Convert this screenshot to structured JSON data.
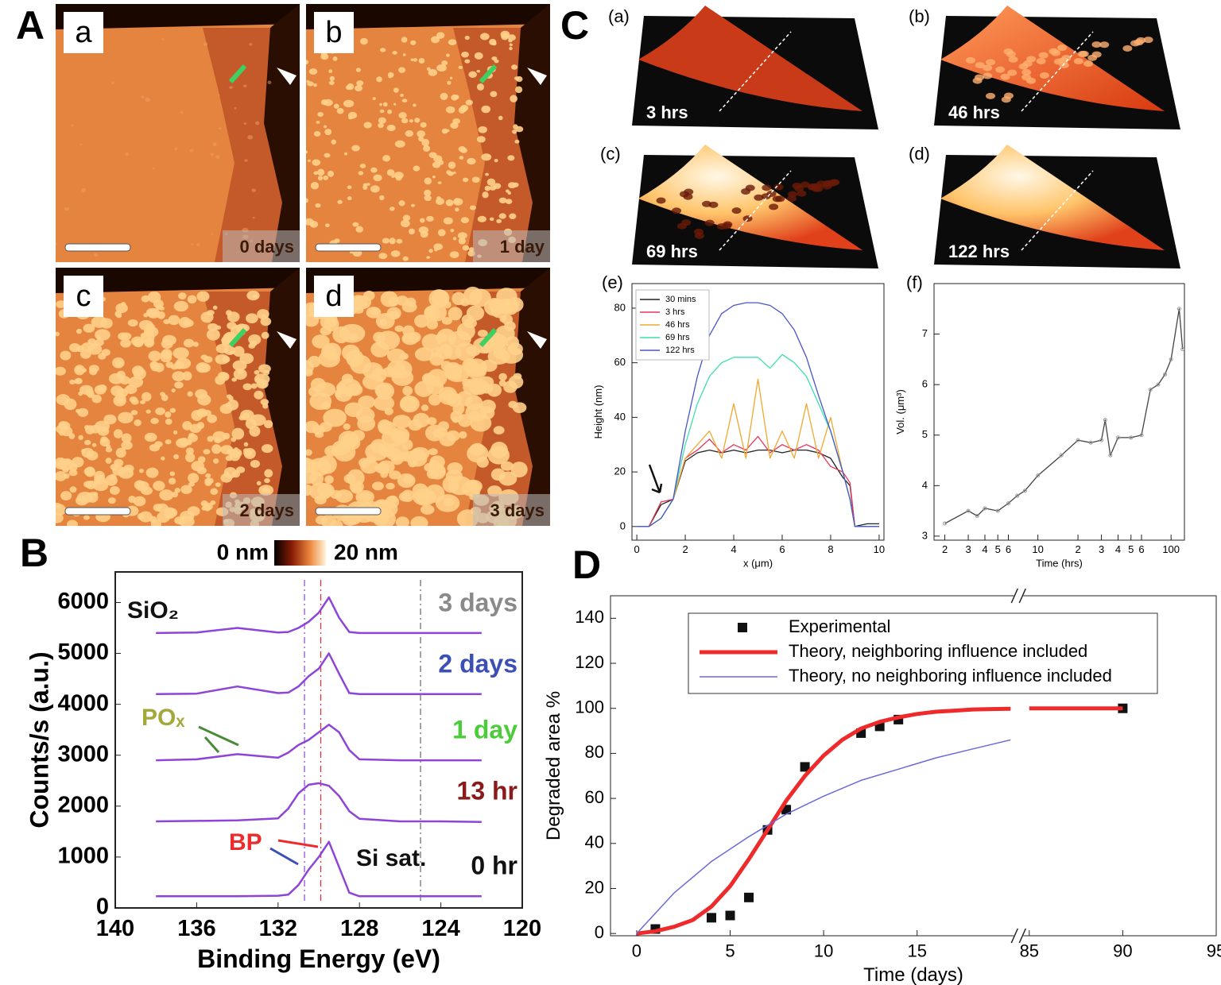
{
  "panels": {
    "A": {
      "letter": "A",
      "images": [
        {
          "tag": "a",
          "caption": "0 days"
        },
        {
          "tag": "b",
          "caption": "1 day"
        },
        {
          "tag": "c",
          "caption": "2 days"
        },
        {
          "tag": "d",
          "caption": "3 days"
        }
      ]
    },
    "C": {
      "letter": "C",
      "images": [
        {
          "tag": "(a)",
          "caption": "3 hrs"
        },
        {
          "tag": "(b)",
          "caption": "46 hrs"
        },
        {
          "tag": "(c)",
          "caption": "69 hrs"
        },
        {
          "tag": "(d)",
          "caption": "122 hrs"
        }
      ]
    },
    "colorbar": {
      "min_label": "0 nm",
      "max_label": "20 nm"
    }
  },
  "chart_data": [
    {
      "type": "line",
      "panel": "B",
      "x_label": "Binding Energy (eV)",
      "y_label": "Counts/s (a.u.)",
      "xlim": [
        140,
        120
      ],
      "xticks": [
        140,
        136,
        132,
        128,
        124,
        120
      ],
      "ylim": [
        0,
        6600
      ],
      "yticks": [
        0,
        1000,
        2000,
        3000,
        4000,
        5000,
        6000
      ],
      "vlines": [
        130.7,
        129.9,
        125
      ],
      "annotations": [
        "SiO₂",
        "POₓ",
        "BP",
        "Si sat."
      ],
      "x": [
        138,
        136,
        134,
        132,
        131.5,
        131,
        130.5,
        130,
        129.5,
        129,
        128.5,
        128,
        126,
        124,
        122
      ],
      "series": [
        {
          "name": "3 days",
          "color": "#8e44d8",
          "name_color": "#8a8a8a",
          "values": [
            5400,
            5410,
            5500,
            5410,
            5420,
            5500,
            5620,
            5800,
            6100,
            5700,
            5420,
            5400,
            5400,
            5400,
            5400
          ]
        },
        {
          "name": "2 days",
          "color": "#8e44d8",
          "name_color": "#3b4fb5",
          "values": [
            4200,
            4210,
            4350,
            4220,
            4230,
            4350,
            4550,
            4700,
            5000,
            4600,
            4220,
            4200,
            4200,
            4200,
            4200
          ]
        },
        {
          "name": "1 day",
          "color": "#8e44d8",
          "name_color": "#4ccc3a",
          "values": [
            2900,
            2920,
            3020,
            2950,
            3050,
            3200,
            3300,
            3450,
            3600,
            3450,
            3100,
            2920,
            2900,
            2900,
            2900
          ]
        },
        {
          "name": "13 hr",
          "color": "#8e44d8",
          "name_color": "#8b1a1a",
          "values": [
            1700,
            1710,
            1720,
            1760,
            1950,
            2250,
            2420,
            2450,
            2400,
            2200,
            1900,
            1750,
            1700,
            1700,
            1690
          ]
        },
        {
          "name": "0 hr",
          "color": "#8e44d8",
          "name_color": "#111111",
          "values": [
            230,
            230,
            230,
            240,
            260,
            450,
            750,
            1000,
            1300,
            800,
            300,
            230,
            230,
            230,
            230
          ]
        }
      ]
    },
    {
      "type": "line",
      "panel": "(e)",
      "x_label": "x (μm)",
      "y_label": "Height (nm)",
      "legend": "upper left",
      "xlim": [
        -0.2,
        10.2
      ],
      "xticks": [
        0,
        2,
        4,
        6,
        8,
        10
      ],
      "ylim": [
        -5,
        89
      ],
      "yticks": [
        0,
        20,
        40,
        60,
        80
      ],
      "x": [
        0,
        0.5,
        1,
        1.5,
        2,
        2.5,
        3,
        3.5,
        4,
        4.5,
        5,
        5.5,
        6,
        6.5,
        7,
        7.5,
        8,
        8.5,
        8.8,
        9,
        9.5,
        10
      ],
      "series": [
        {
          "name": "30 mins",
          "color": "#222222",
          "values": [
            0,
            0,
            8,
            10,
            24,
            27,
            28,
            27,
            28,
            27,
            28,
            28,
            27,
            28,
            28,
            27,
            25,
            18,
            15,
            0,
            1,
            1
          ]
        },
        {
          "name": "3 hrs",
          "color": "#e8365a",
          "values": [
            0,
            0,
            9,
            10,
            25,
            28,
            32,
            27,
            30,
            28,
            33,
            27,
            30,
            28,
            30,
            28,
            22,
            20,
            16,
            0,
            0,
            0
          ]
        },
        {
          "name": "46 hrs",
          "color": "#f0a830",
          "values": [
            0,
            0,
            3,
            10,
            25,
            30,
            35,
            25,
            45,
            25,
            54,
            25,
            35,
            25,
            45,
            25,
            40,
            20,
            10,
            0,
            0,
            0
          ]
        },
        {
          "name": "69 hrs",
          "color": "#3ee0b0",
          "values": [
            0,
            0,
            3,
            10,
            30,
            45,
            55,
            60,
            62,
            62,
            62,
            58,
            63,
            60,
            55,
            45,
            35,
            20,
            10,
            0,
            0,
            0
          ]
        },
        {
          "name": "122 hrs",
          "color": "#4a55c8",
          "values": [
            0,
            0,
            3,
            10,
            35,
            55,
            70,
            78,
            81,
            82,
            82,
            81,
            78,
            72,
            62,
            48,
            35,
            20,
            10,
            0,
            0,
            0
          ]
        }
      ]
    },
    {
      "type": "line",
      "panel": "(f)",
      "x_label": "Time (hrs)",
      "y_label": "Vol. (μm³)",
      "xlog": true,
      "xlim": [
        1.66,
        126
      ],
      "xticks": [
        2,
        3,
        4,
        5,
        6,
        10,
        {
          "value": 20,
          "label": "2"
        },
        {
          "value": 30,
          "label": "3"
        },
        {
          "value": 40,
          "label": "4"
        },
        {
          "value": 50,
          "label": "5"
        },
        {
          "value": 60,
          "label": "6"
        },
        100
      ],
      "ylim": [
        2.92,
        8
      ],
      "yticks": [
        3,
        4,
        5,
        6,
        7
      ],
      "x": [
        2,
        3,
        3.5,
        4,
        5,
        6,
        7,
        8,
        10,
        15,
        20,
        25,
        30,
        32,
        35,
        40,
        50,
        60,
        70,
        80,
        90,
        100,
        115,
        122
      ],
      "series": [
        {
          "color": "#444444",
          "marker": "circle",
          "values": [
            3.25,
            3.5,
            3.4,
            3.55,
            3.5,
            3.65,
            3.8,
            3.9,
            4.2,
            4.6,
            4.9,
            4.85,
            4.9,
            5.3,
            4.6,
            4.95,
            4.95,
            5.0,
            5.9,
            6.0,
            6.2,
            6.5,
            7.5,
            6.7
          ]
        }
      ]
    },
    {
      "type": "line",
      "panel": "D",
      "x_label": "Time (days)",
      "y_label": "Degraded area %",
      "legend": "upper right",
      "xlim": [
        -1.4,
        95
      ],
      "x_break": [
        20,
        84
      ],
      "xticks": [
        0,
        5,
        10,
        15,
        85,
        90,
        95
      ],
      "ylim": [
        -1,
        150
      ],
      "yticks": [
        0,
        20,
        40,
        60,
        80,
        100,
        120,
        140
      ],
      "series": [
        {
          "name": "Experimental",
          "color": "#111111",
          "marker": "square",
          "line": false,
          "x": [
            1,
            4,
            5,
            6,
            7,
            8,
            9,
            12,
            13,
            14,
            90
          ],
          "values": [
            2,
            7,
            8,
            16,
            46,
            55,
            74,
            89,
            92,
            95,
            100
          ]
        },
        {
          "name": "Theory, neighboring influence included",
          "color": "#ee2a2a",
          "line_width": 5,
          "x": [
            0,
            1,
            2,
            3,
            4,
            5,
            6,
            7,
            8,
            9,
            10,
            11,
            12,
            13,
            14,
            15,
            16,
            17,
            18,
            19,
            20,
            85,
            90
          ],
          "values": [
            0,
            1,
            3,
            6,
            12,
            21,
            33,
            46,
            59,
            70,
            79,
            86,
            91,
            94,
            96,
            97.5,
            98.5,
            99,
            99.5,
            99.7,
            99.8,
            100,
            100
          ]
        },
        {
          "name": "Theory, no neighboring influence included",
          "color": "#6a6ad8",
          "line_width": 1.5,
          "x": [
            0,
            2,
            4,
            6,
            8,
            10,
            12,
            14,
            16,
            18,
            20
          ],
          "values": [
            0,
            18,
            32,
            43,
            53,
            61,
            68,
            73,
            78,
            82,
            86
          ]
        }
      ]
    }
  ]
}
